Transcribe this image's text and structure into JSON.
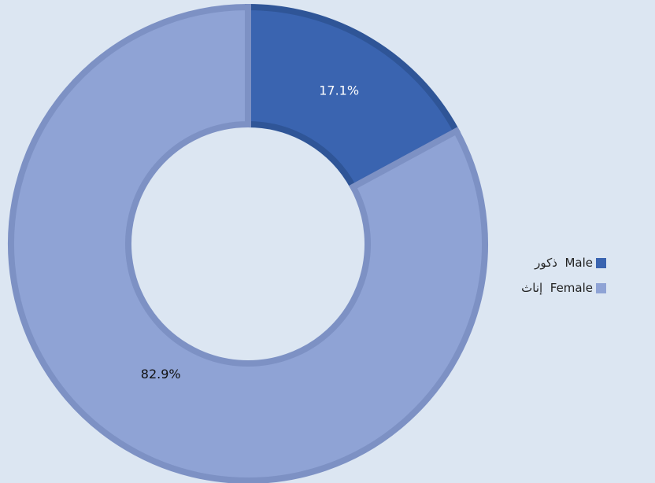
{
  "chart_data": {
    "type": "donut",
    "categories": [
      "ذكور  Male",
      "إناث  Female"
    ],
    "values": [
      17.1,
      82.9
    ],
    "value_labels": [
      "17.1%",
      "82.9%"
    ],
    "colors": [
      "#3a64b0",
      "#8fa3d5"
    ],
    "legend": "right"
  }
}
